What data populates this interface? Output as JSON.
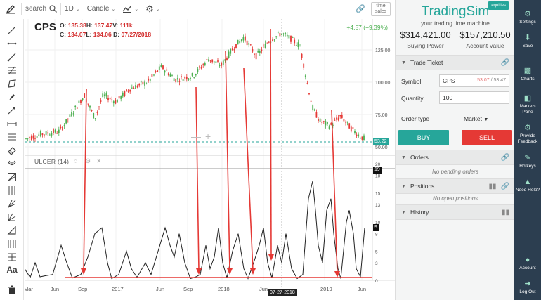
{
  "toolbar": {
    "search_label": "search",
    "interval": "1D",
    "chart_type": "Candle",
    "time_sales": "time sales"
  },
  "chart": {
    "symbol": "CPS",
    "open_label": "O:",
    "open": "135.38",
    "high_label": "H:",
    "high": "137.47",
    "volume_label": "V:",
    "volume": "111k",
    "close_label": "C:",
    "close": "134.07",
    "low_label": "L:",
    "low": "134.06",
    "date_label": "D:",
    "date": "07/27/2018",
    "change": "+4.57 (+9.39%)",
    "indicator": "ULCER (14)",
    "price_axis": [
      "125.00",
      "100.00",
      "75.00",
      "50.00"
    ],
    "current_price_tag": "53.22",
    "indicator_axis": [
      "20",
      "18",
      "15",
      "13",
      "10",
      "8",
      "5",
      "3",
      "0"
    ],
    "indicator_value_tag_top": "19",
    "indicator_value_tag": "9",
    "x_axis": [
      "Mar",
      "Jun",
      "Sep",
      "2017",
      "Jun",
      "Sep",
      "2018",
      "Jun",
      "2019",
      "Jun"
    ],
    "date_flag": "07-27-2018"
  },
  "panel": {
    "brand": "TradingSim",
    "brand_tag": "equities",
    "tagline": "your trading time machine",
    "buying_power": "$314,421.00",
    "buying_power_label": "Buying Power",
    "account_value": "$157,210.50",
    "account_value_label": "Account Value",
    "trade_ticket": "Trade Ticket",
    "symbol_label": "Symbol",
    "symbol_value": "CPS",
    "bid": "53.07",
    "ask": "53.47",
    "bidask_sep": " / ",
    "quantity_label": "Quantity",
    "quantity_value": "100",
    "order_type_label": "Order type",
    "order_type_value": "Market",
    "buy": "BUY",
    "sell": "SELL",
    "orders": "Orders",
    "orders_empty": "No pending orders",
    "positions": "Positions",
    "positions_empty": "No open positions",
    "history": "History"
  },
  "nav": {
    "settings": "Settings",
    "save": "Save",
    "charts": "Charts",
    "markets_pane": "Markets Pane",
    "feedback": "Provide Feedback",
    "hotkeys": "Hotkeys",
    "help": "Need Help?",
    "account": "Account",
    "logout": "Log Out"
  },
  "colors": {
    "accent": "#26a69a",
    "sell": "#e53935",
    "nav_bg": "#2c3e50",
    "up_candle": "#4caf50",
    "down_candle": "#e53935"
  }
}
